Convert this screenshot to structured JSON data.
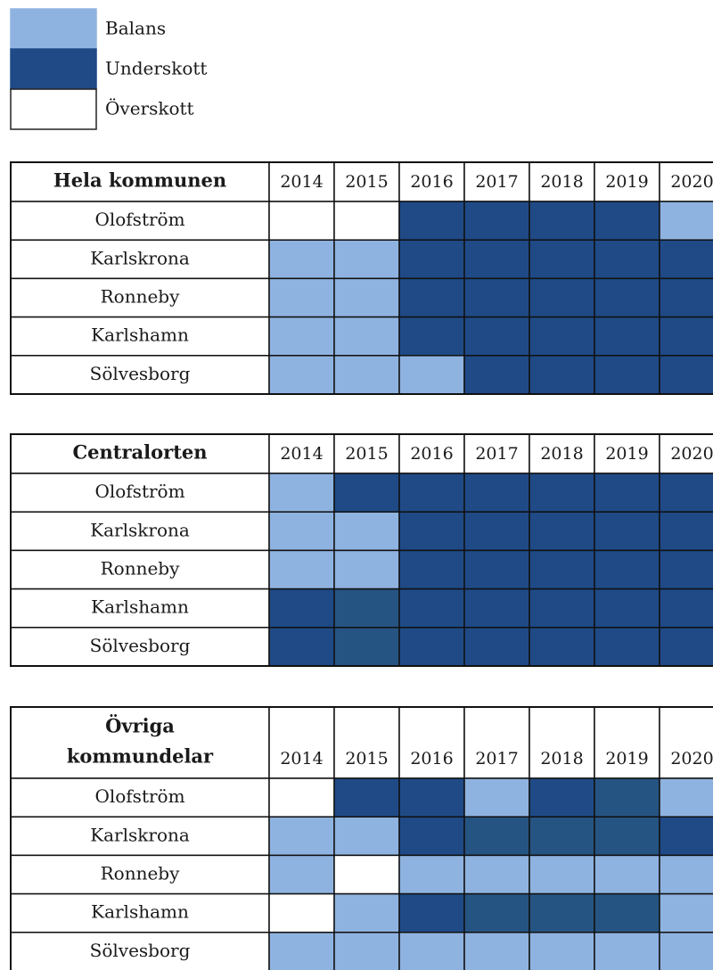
{
  "legend": [
    {
      "label": "Balans",
      "color": "#8fb3e0"
    },
    {
      "label": "Underskott",
      "color": "#1f4a86"
    },
    {
      "label": "Överskott",
      "color": "#ffffff"
    }
  ],
  "tables": [
    {
      "title": [
        "Hela kommunen"
      ],
      "years": [
        "2014",
        "2015",
        "2016",
        "2017",
        "2018",
        "2019",
        "2020"
      ],
      "rows": [
        {
          "name": "Olofström",
          "cells": [
            "#ffffff",
            "#ffffff",
            "#1f4a86",
            "#1f4a86",
            "#1f4a86",
            "#1f4a86",
            "#8fb3e0"
          ]
        },
        {
          "name": "Karlskrona",
          "cells": [
            "#8fb3e0",
            "#8fb3e0",
            "#1f4a86",
            "#1f4a86",
            "#1f4a86",
            "#1f4a86",
            "#1f4a86"
          ]
        },
        {
          "name": "Ronneby",
          "cells": [
            "#8fb3e0",
            "#8fb3e0",
            "#1f4a86",
            "#1f4a86",
            "#1f4a86",
            "#1f4a86",
            "#1f4a86"
          ]
        },
        {
          "name": "Karlshamn",
          "cells": [
            "#8fb3e0",
            "#8fb3e0",
            "#1f4a86",
            "#1f4a86",
            "#1f4a86",
            "#1f4a86",
            "#1f4a86"
          ]
        },
        {
          "name": "Sölvesborg",
          "cells": [
            "#8fb3e0",
            "#8fb3e0",
            "#8fb3e0",
            "#1f4a86",
            "#1f4a86",
            "#1f4a86",
            "#1f4a86"
          ]
        }
      ]
    },
    {
      "title": [
        "Centralorten"
      ],
      "years": [
        "2014",
        "2015",
        "2016",
        "2017",
        "2018",
        "2019",
        "2020"
      ],
      "rows": [
        {
          "name": "Olofström",
          "cells": [
            "#8fb3e0",
            "#1f4a86",
            "#1f4a86",
            "#1f4a86",
            "#1f4a86",
            "#1f4a86",
            "#1f4a86"
          ]
        },
        {
          "name": "Karlskrona",
          "cells": [
            "#8fb3e0",
            "#8fb3e0",
            "#1f4a86",
            "#1f4a86",
            "#1f4a86",
            "#1f4a86",
            "#1f4a86"
          ]
        },
        {
          "name": "Ronneby",
          "cells": [
            "#8fb3e0",
            "#8fb3e0",
            "#1f4a86",
            "#1f4a86",
            "#1f4a86",
            "#1f4a86",
            "#1f4a86"
          ]
        },
        {
          "name": "Karlshamn",
          "cells": [
            "#1f4a86",
            "#265482",
            "#1f4a86",
            "#1f4a86",
            "#1f4a86",
            "#1f4a86",
            "#1f4a86"
          ]
        },
        {
          "name": "Sölvesborg",
          "cells": [
            "#1f4a86",
            "#265482",
            "#1f4a86",
            "#1f4a86",
            "#1f4a86",
            "#1f4a86",
            "#1f4a86"
          ]
        }
      ]
    },
    {
      "title": [
        "Övriga",
        "kommundelar"
      ],
      "years": [
        "2014",
        "2015",
        "2016",
        "2017",
        "2018",
        "2019",
        "2020"
      ],
      "rows": [
        {
          "name": "Olofström",
          "cells": [
            "#ffffff",
            "#1f4a86",
            "#1f4a86",
            "#8fb3e0",
            "#1f4a86",
            "#265482",
            "#8fb3e0"
          ]
        },
        {
          "name": "Karlskrona",
          "cells": [
            "#8fb3e0",
            "#8fb3e0",
            "#1f4a86",
            "#265482",
            "#265482",
            "#265482",
            "#1f4a86"
          ]
        },
        {
          "name": "Ronneby",
          "cells": [
            "#8fb3e0",
            "#ffffff",
            "#8fb3e0",
            "#8fb3e0",
            "#8fb3e0",
            "#8fb3e0",
            "#8fb3e0"
          ]
        },
        {
          "name": "Karlshamn",
          "cells": [
            "#ffffff",
            "#8fb3e0",
            "#1f4a86",
            "#265482",
            "#265482",
            "#265482",
            "#8fb3e0"
          ]
        },
        {
          "name": "Sölvesborg",
          "cells": [
            "#8fb3e0",
            "#8fb3e0",
            "#8fb3e0",
            "#8fb3e0",
            "#8fb3e0",
            "#8fb3e0",
            "#8fb3e0"
          ]
        }
      ]
    }
  ]
}
